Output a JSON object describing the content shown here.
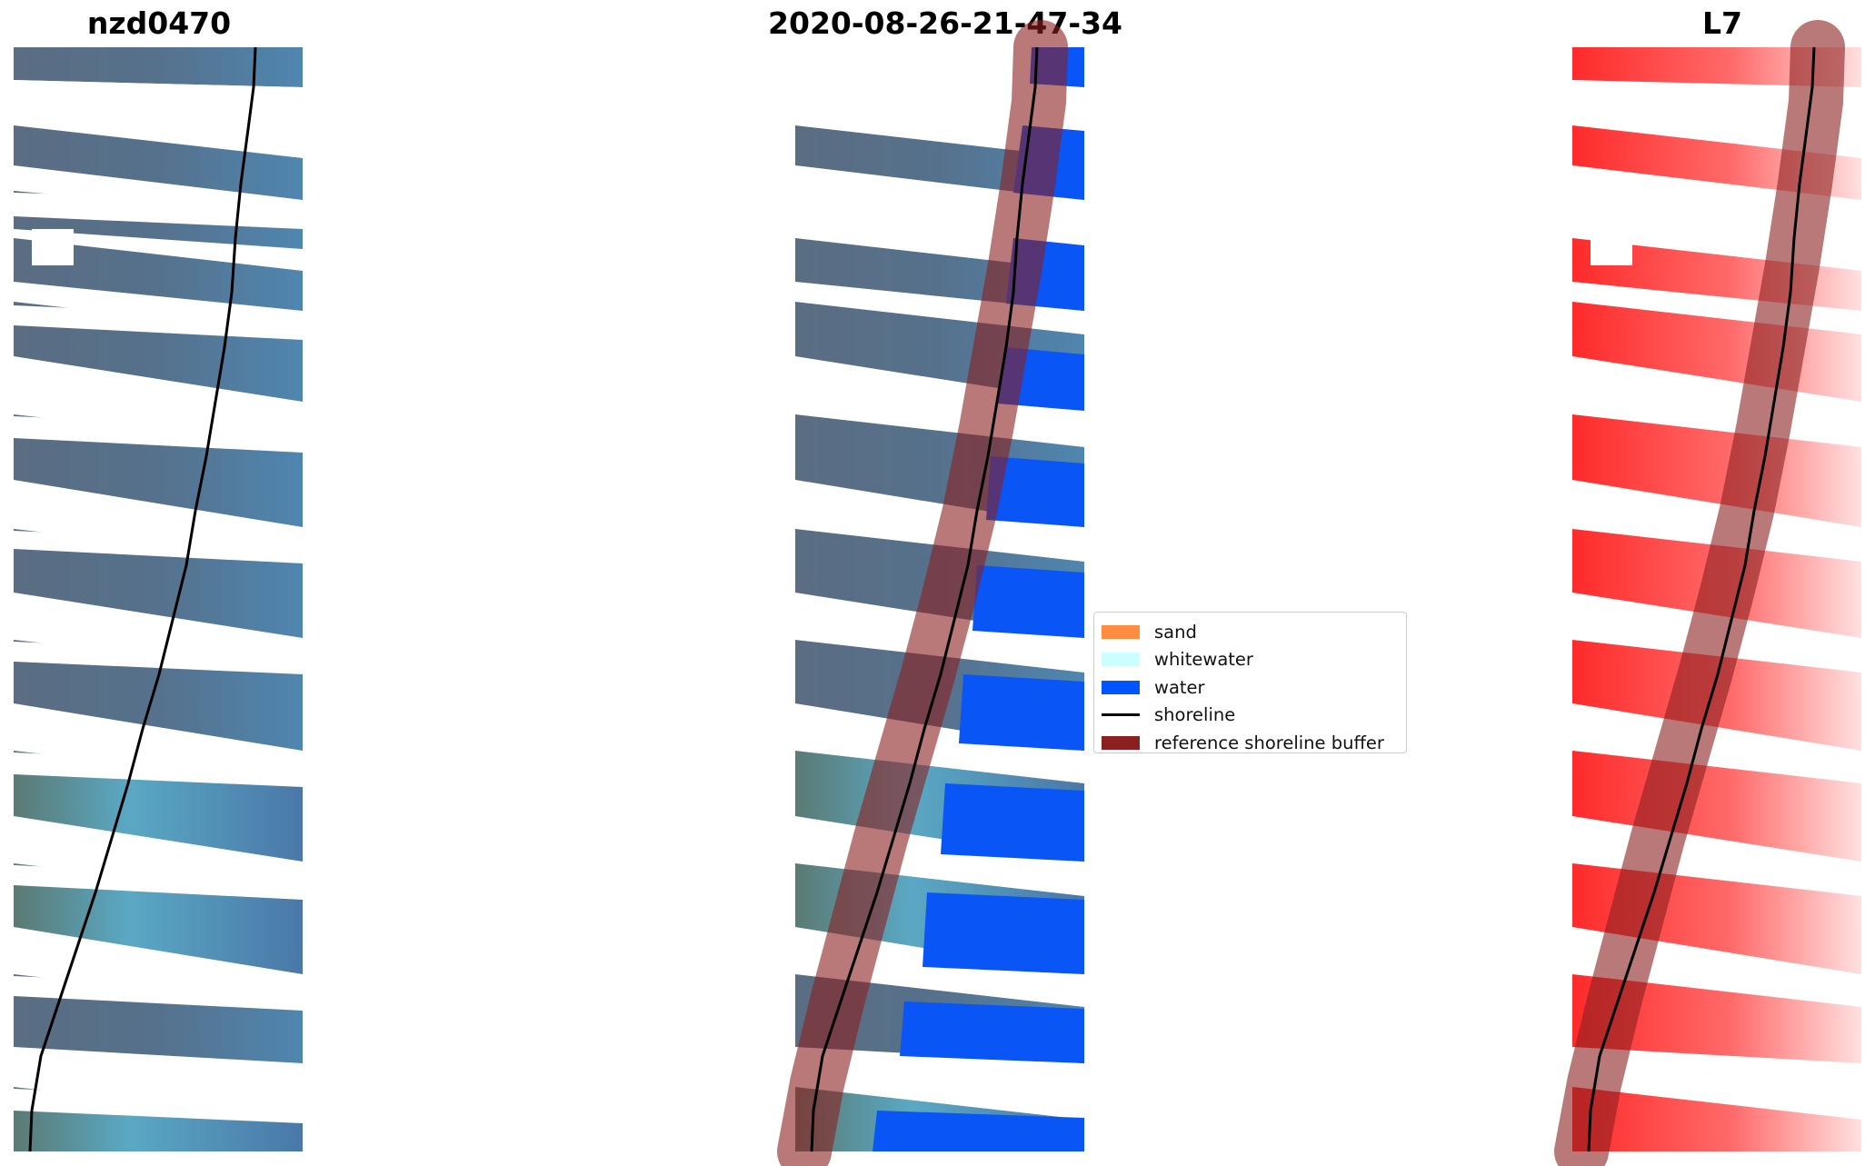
{
  "panels": {
    "left_title": "nzd0470",
    "middle_title": "2020-08-26-21-47-34",
    "right_title": "L7"
  },
  "legend": {
    "items": [
      {
        "label": "sand",
        "color": "#ff8c3f",
        "kind": "patch"
      },
      {
        "label": "whitewater",
        "color": "#ccffff",
        "kind": "patch"
      },
      {
        "label": "water",
        "color": "#0055ff",
        "kind": "patch"
      },
      {
        "label": "shoreline",
        "color": "#000000",
        "kind": "line"
      },
      {
        "label": "reference shoreline buffer",
        "color": "#8b2020",
        "kind": "patch"
      }
    ]
  }
}
